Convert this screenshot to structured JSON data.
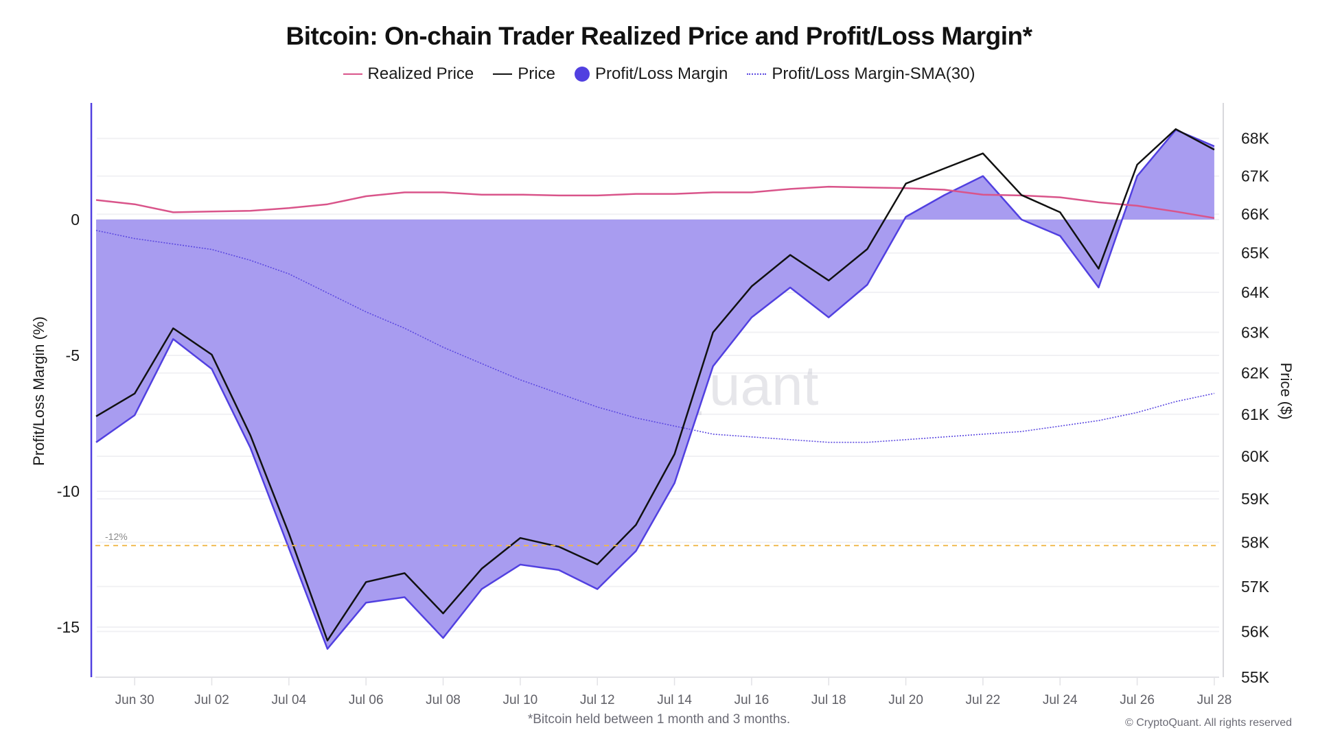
{
  "chart_data": {
    "type": "line",
    "title": "Bitcoin: On-chain Trader Realized Price and Profit/Loss Margin*",
    "footnote": "*Bitcoin held between 1 month and 3 months.",
    "copyright": "© CryptoQuant. All rights reserved",
    "watermark": "CryptoQuant",
    "legend_position": "top-center",
    "grid": true,
    "x": [
      "Jun 29",
      "Jun 30",
      "Jul 01",
      "Jul 02",
      "Jul 03",
      "Jul 04",
      "Jul 05",
      "Jul 06",
      "Jul 07",
      "Jul 08",
      "Jul 09",
      "Jul 10",
      "Jul 11",
      "Jul 12",
      "Jul 13",
      "Jul 14",
      "Jul 15",
      "Jul 16",
      "Jul 17",
      "Jul 18",
      "Jul 19",
      "Jul 20",
      "Jul 21",
      "Jul 22",
      "Jul 23",
      "Jul 24",
      "Jul 25",
      "Jul 26",
      "Jul 27",
      "Jul 28"
    ],
    "x_tick_labels": [
      "Jun 30",
      "Jul 02",
      "Jul 04",
      "Jul 06",
      "Jul 08",
      "Jul 10",
      "Jul 12",
      "Jul 14",
      "Jul 16",
      "Jul 18",
      "Jul 20",
      "Jul 22",
      "Jul 24",
      "Jul 26",
      "Jul 28"
    ],
    "x_tick_indices": [
      1,
      3,
      5,
      7,
      9,
      11,
      13,
      15,
      17,
      19,
      21,
      23,
      25,
      27,
      29
    ],
    "left_axis": {
      "label": "Profit/Loss Margin (%)",
      "range": [
        -16.8,
        4.6
      ],
      "ticks": [
        0,
        -5,
        -10,
        -15
      ],
      "tick_labels": [
        "0",
        "-5",
        "-10",
        "-15"
      ]
    },
    "right_axis": {
      "label": "Price ($)",
      "scale": "log",
      "range": [
        55000,
        69300
      ],
      "ticks": [
        68000,
        67000,
        66000,
        65000,
        64000,
        63000,
        62000,
        61000,
        60000,
        59000,
        58000,
        57000,
        56000,
        55000
      ],
      "tick_labels": [
        "68K",
        "67K",
        "66K",
        "65K",
        "64K",
        "63K",
        "62K",
        "61K",
        "60K",
        "59K",
        "58K",
        "57K",
        "56K",
        "55K"
      ]
    },
    "reference_line": {
      "value": -12,
      "label": "-12%",
      "axis": "left",
      "color": "#f0b84a"
    },
    "series": [
      {
        "name": "Realized Price",
        "axis": "right",
        "kind": "line",
        "color": "#d9548a",
        "values": [
          66370,
          66260,
          66050,
          66070,
          66090,
          66160,
          66260,
          66470,
          66570,
          66570,
          66510,
          66510,
          66490,
          66490,
          66530,
          66530,
          66570,
          66570,
          66660,
          66720,
          66700,
          66680,
          66640,
          66510,
          66490,
          66440,
          66310,
          66220,
          66070,
          65900
        ]
      },
      {
        "name": "Price",
        "axis": "right",
        "kind": "line",
        "color": "#111111",
        "values": [
          60950,
          61500,
          63100,
          62450,
          60500,
          58200,
          55800,
          57100,
          57300,
          56400,
          57400,
          58100,
          57900,
          57500,
          58400,
          60050,
          63000,
          64150,
          64950,
          64300,
          65100,
          66800,
          67200,
          67600,
          66500,
          66050,
          64600,
          67300,
          68250,
          67700
        ]
      },
      {
        "name": "Profit/Loss Margin",
        "axis": "left",
        "kind": "area",
        "color": "#5140e0",
        "fill": "#a89cf0",
        "values": [
          -8.2,
          -7.2,
          -4.4,
          -5.5,
          -8.4,
          -12.1,
          -15.8,
          -14.1,
          -13.9,
          -15.4,
          -13.6,
          -12.7,
          -12.9,
          -13.6,
          -12.2,
          -9.7,
          -5.4,
          -3.6,
          -2.5,
          -3.6,
          -2.4,
          0.1,
          0.9,
          1.6,
          0.0,
          -0.6,
          -2.5,
          1.6,
          3.3,
          2.7
        ]
      },
      {
        "name": "Profit/Loss Margin-SMA(30)",
        "axis": "left",
        "kind": "dotted-line",
        "color": "#5b48e0",
        "values": [
          -0.4,
          -0.7,
          -0.9,
          -1.1,
          -1.5,
          -2.0,
          -2.7,
          -3.4,
          -4.0,
          -4.7,
          -5.3,
          -5.9,
          -6.4,
          -6.9,
          -7.3,
          -7.6,
          -7.9,
          -8.0,
          -8.1,
          -8.2,
          -8.2,
          -8.1,
          -8.0,
          -7.9,
          -7.8,
          -7.6,
          -7.4,
          -7.1,
          -6.7,
          -6.4
        ]
      }
    ]
  }
}
